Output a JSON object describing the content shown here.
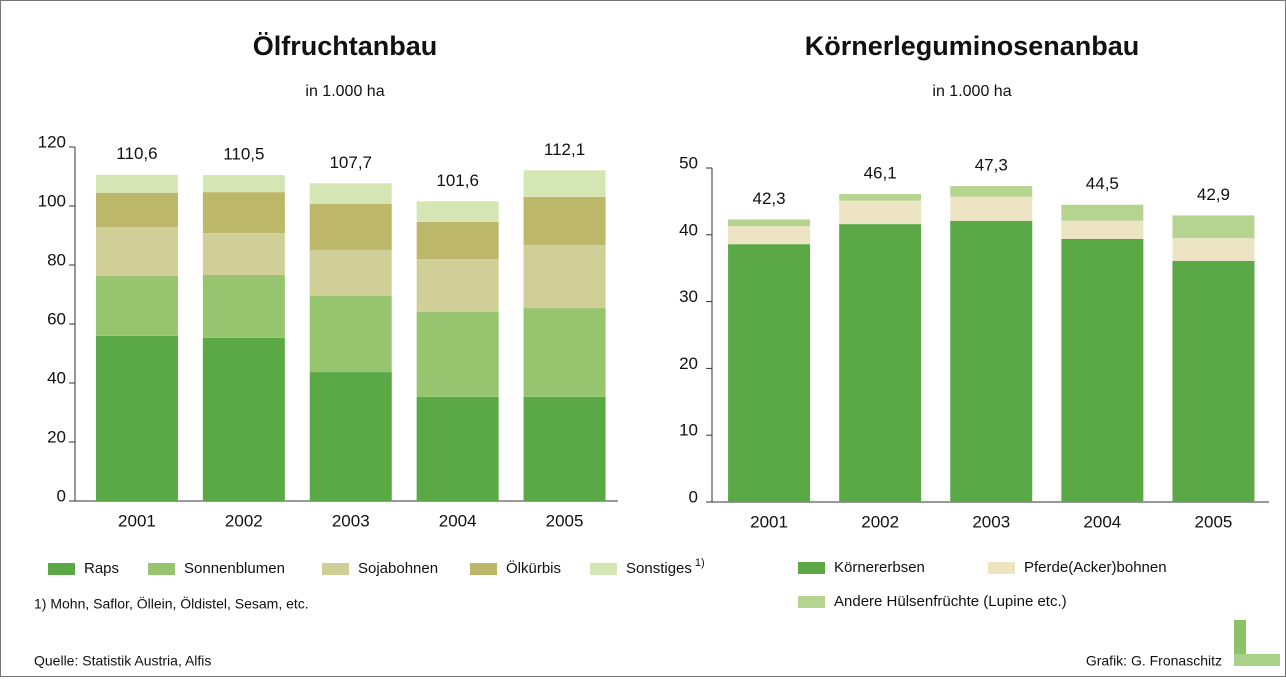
{
  "source": "Quelle: Statistik Austria, Alfis",
  "credit": "Grafik: G. Fronaschitz",
  "chart_data": [
    {
      "type": "bar",
      "stacked": true,
      "title": "Ölfruchtanbau",
      "subtitle": "in 1.000 ha",
      "categories": [
        "2001",
        "2002",
        "2003",
        "2004",
        "2005"
      ],
      "series": [
        {
          "name": "Raps",
          "color": "#5aa846",
          "values": [
            56,
            55.3,
            43.7,
            35.3,
            35.3
          ]
        },
        {
          "name": "Sonnenblumen",
          "color": "#97c56f",
          "values": [
            20.3,
            21.3,
            25.8,
            28.8,
            30.1
          ]
        },
        {
          "name": "Sojabohnen",
          "color": "#d0cf98",
          "values": [
            16.6,
            14.2,
            15.6,
            17.9,
            21.4
          ]
        },
        {
          "name": "Ölkürbis",
          "color": "#bdb76a",
          "values": [
            11.6,
            13.9,
            15.6,
            12.6,
            16.3
          ]
        },
        {
          "name": "Sonstiges",
          "color": "#d5e6b5",
          "values": [
            6.1,
            5.8,
            7.0,
            7.0,
            9.0
          ]
        }
      ],
      "totals": [
        110.6,
        110.5,
        107.7,
        101.6,
        112.1
      ],
      "total_labels": [
        "110,6",
        "110,5",
        "107,7",
        "101,6",
        "112,1"
      ],
      "footnote_marker": "1)",
      "footnote": "1) Mohn, Saflor, Öllein, Öldistel, Sesam, etc.",
      "ylim": [
        0,
        120
      ],
      "yticks": [
        0,
        20,
        40,
        60,
        80,
        100,
        120
      ]
    },
    {
      "type": "bar",
      "stacked": true,
      "title": "Körnerleguminosenanbau",
      "subtitle": "in 1.000 ha",
      "categories": [
        "2001",
        "2002",
        "2003",
        "2004",
        "2005"
      ],
      "series": [
        {
          "name": "Körnererbsen",
          "color": "#5aa846",
          "values": [
            38.6,
            41.6,
            42.1,
            39.4,
            36.1
          ]
        },
        {
          "name": "Pferde(Acker)bohnen",
          "color": "#ede4c4",
          "values": [
            2.7,
            3.5,
            3.6,
            2.7,
            3.4
          ]
        },
        {
          "name": "Andere Hülsenfrüchte (Lupine etc.)",
          "color": "#b5d48f",
          "values": [
            1.0,
            1.0,
            1.6,
            2.4,
            3.4
          ]
        }
      ],
      "totals": [
        42.3,
        46.1,
        47.3,
        44.5,
        42.9
      ],
      "total_labels": [
        "42,3",
        "46,1",
        "47,3",
        "44,5",
        "42,9"
      ],
      "ylim": [
        0,
        50
      ],
      "yticks": [
        0,
        10,
        20,
        30,
        40,
        50
      ]
    }
  ]
}
